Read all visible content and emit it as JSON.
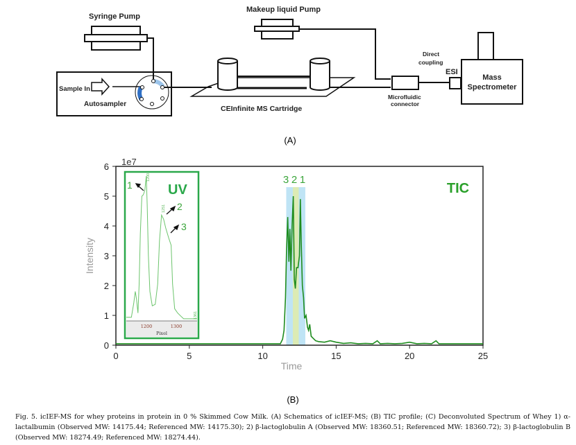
{
  "schematic": {
    "syringe_pump": "Syringe Pump",
    "makeup_pump": "Makeup liquid Pump",
    "sample_in": "Sample In",
    "autosampler": "Autosampler",
    "cartridge": "CEInfinite MS Cartridge",
    "direct_coupling_1": "Direct",
    "direct_coupling_2": "coupling",
    "esi": "ESI",
    "ms_1": "Mass",
    "ms_2": "Spectrometer",
    "connector_1": "Microfluidic",
    "connector_2": "connector",
    "panel_label": "(A)"
  },
  "panel_b_label": "(B)",
  "caption": "Fig. 5. icIEF-MS for whey proteins in protein in 0 % Skimmed Cow Milk. (A) Schematics of icIEF-MS; (B) TIC profile; (C) Deconvoluted Spectrum of Whey 1) α-lactalbumin (Observed MW: 14175.44; Referenced MW: 14175.30); 2) β-lactoglobulin A (Observed MW: 18360.51; Referenced MW: 18360.72); 3) β-lactoglobulin B (Observed MW: 18274.49; Referenced MW: 18274.44).",
  "chart_data": [
    {
      "type": "line",
      "title": "TIC",
      "xlabel": "Time",
      "ylabel": "Intensity",
      "y_scale_label": "1e7",
      "xlim": [
        0,
        25
      ],
      "ylim": [
        0,
        6
      ],
      "xticks": [
        "0",
        "5",
        "10",
        "15",
        "20",
        "25"
      ],
      "yticks": [
        "0",
        "1",
        "2",
        "3",
        "4",
        "5",
        "6"
      ],
      "color": "#1e8c1e",
      "highlight_bands": [
        {
          "range": [
            11.6,
            12.9
          ],
          "color": "#bfe4f5"
        },
        {
          "range": [
            12.05,
            12.45
          ],
          "color": "#dcebb4"
        }
      ],
      "peak_labels": [
        "3",
        "2",
        "1"
      ],
      "series": [
        {
          "name": "TIC",
          "x": [
            0,
            5,
            10,
            11.2,
            11.35,
            11.45,
            11.55,
            11.62,
            11.7,
            11.78,
            11.85,
            11.92,
            12.0,
            12.08,
            12.15,
            12.22,
            12.3,
            12.4,
            12.5,
            12.56,
            12.62,
            12.7,
            12.78,
            12.85,
            12.95,
            13.05,
            13.12,
            13.2,
            13.3,
            13.4,
            13.6,
            13.8,
            14.2,
            14.6,
            15,
            15.5,
            16,
            16.5,
            17,
            17.5,
            17.8,
            18,
            18.5,
            19,
            19.5,
            20,
            20.5,
            21,
            21.5,
            21.8,
            22,
            22.5,
            23,
            24,
            25
          ],
          "y": [
            0.05,
            0.05,
            0.05,
            0.05,
            0.2,
            0.5,
            1.6,
            3.2,
            4.3,
            2.8,
            3.9,
            2.5,
            4.0,
            5.0,
            2.2,
            1.9,
            2.6,
            2.6,
            3.0,
            4.9,
            3.5,
            2.0,
            1.6,
            0.9,
            1.0,
            0.6,
            0.5,
            0.7,
            0.3,
            0.25,
            0.15,
            0.12,
            0.1,
            0.15,
            0.1,
            0.06,
            0.08,
            0.05,
            0.06,
            0.05,
            0.15,
            0.05,
            0.06,
            0.05,
            0.06,
            0.1,
            0.05,
            0.06,
            0.05,
            0.15,
            0.05,
            0.05,
            0.05,
            0.05,
            0.05
          ]
        }
      ]
    },
    {
      "type": "line",
      "title": "UV",
      "xlabel": "Pixel",
      "xlim": [
        1133,
        1370
      ],
      "ylim": [
        0,
        1
      ],
      "xticks": [
        "1200",
        "1300"
      ],
      "color": "#5cc05c",
      "peak_annotations": [
        "1",
        "2",
        "3"
      ],
      "tick_marks": [
        "1200",
        "1251",
        "1361"
      ],
      "series": [
        {
          "name": "UV",
          "x": [
            1133,
            1150,
            1158,
            1163,
            1167,
            1172,
            1176,
            1180,
            1185,
            1190,
            1195,
            1200,
            1203,
            1207,
            1212,
            1220,
            1230,
            1238,
            1244,
            1251,
            1258,
            1265,
            1275,
            1283,
            1288,
            1295,
            1305,
            1315,
            1325,
            1370
          ],
          "y": [
            0.02,
            0.02,
            0.12,
            0.2,
            0.15,
            0.05,
            0.25,
            0.6,
            0.86,
            0.87,
            0.9,
            1.0,
            0.8,
            0.45,
            0.2,
            0.1,
            0.11,
            0.25,
            0.55,
            0.73,
            0.7,
            0.64,
            0.57,
            0.52,
            0.25,
            0.08,
            0.05,
            0.03,
            0.01,
            0.01
          ]
        }
      ]
    }
  ]
}
